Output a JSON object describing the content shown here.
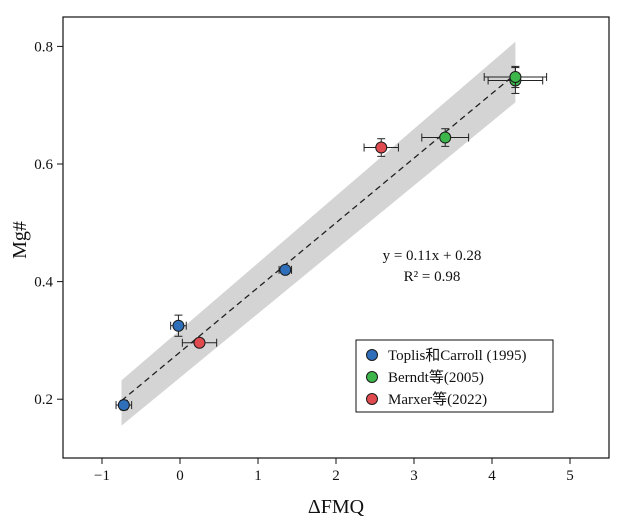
{
  "chart_data": {
    "type": "scatter",
    "title": "",
    "xlabel": "ΔFMQ",
    "ylabel": "Mg#",
    "xlim": [
      -1.5,
      5.5
    ],
    "ylim": [
      0.1,
      0.85
    ],
    "x_ticks": [
      -1,
      0,
      1,
      2,
      3,
      4,
      5
    ],
    "y_ticks": [
      0.2,
      0.4,
      0.6,
      0.8
    ],
    "x_tick_labels": [
      "−1",
      "0",
      "1",
      "2",
      "3",
      "4",
      "5"
    ],
    "y_tick_labels": [
      "0.2",
      "0.4",
      "0.6",
      "0.8"
    ],
    "grid": false,
    "legend_position": "bottom-right",
    "series": [
      {
        "name": "Toplis和Carroll (1995)",
        "color": "#2f6eb8",
        "points": [
          {
            "x": -0.72,
            "y": 0.19,
            "xerr": 0.1,
            "yerr": 0.008
          },
          {
            "x": -0.02,
            "y": 0.325,
            "xerr": 0.1,
            "yerr": 0.018
          },
          {
            "x": 1.35,
            "y": 0.42,
            "xerr": 0.08,
            "yerr": 0.006
          }
        ]
      },
      {
        "name": "Berndt等(2005)",
        "color": "#3cb54a",
        "points": [
          {
            "x": 3.4,
            "y": 0.645,
            "xerr": 0.3,
            "yerr": 0.015
          },
          {
            "x": 4.3,
            "y": 0.742,
            "xerr": 0.35,
            "yerr": 0.022
          },
          {
            "x": 4.3,
            "y": 0.748,
            "xerr": 0.4,
            "yerr": 0.018
          }
        ]
      },
      {
        "name": "Marxer等(2022)",
        "color": "#e04b4f",
        "points": [
          {
            "x": 0.25,
            "y": 0.296,
            "xerr": 0.22,
            "yerr": 0.006
          },
          {
            "x": 2.58,
            "y": 0.628,
            "xerr": 0.22,
            "yerr": 0.015
          }
        ]
      }
    ],
    "fit": {
      "slope": 0.11,
      "intercept": 0.28,
      "x_range": [
        -0.75,
        4.3
      ],
      "band": {
        "x": [
          -0.75,
          4.3
        ],
        "upper": [
          0.232,
          0.808
        ],
        "lower": [
          0.155,
          0.705
        ]
      },
      "band_color": "#d4d4d4"
    },
    "annotations": {
      "equation": "y = 0.11x + 0.28",
      "r_squared": "R² = 0.98"
    }
  }
}
